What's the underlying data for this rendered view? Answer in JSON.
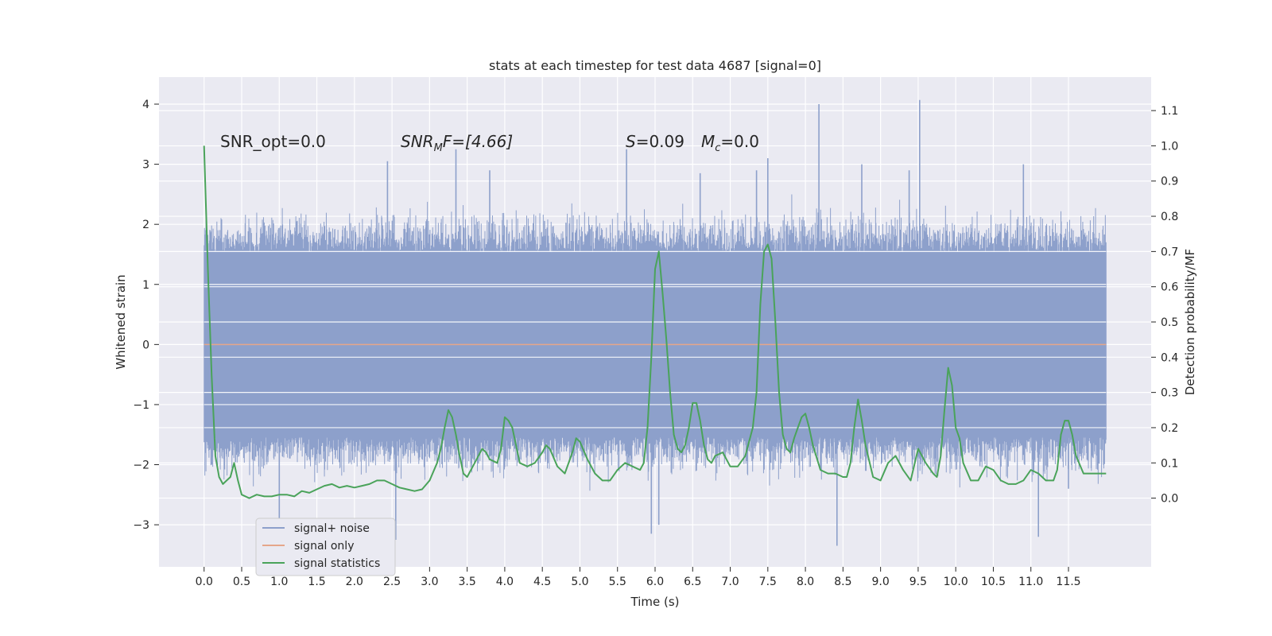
{
  "chart_data": {
    "type": "line",
    "title": "stats at each timestep for test data 4687 [signal=0]",
    "xlabel": "Time (s)",
    "ylabel_left": "Whitened strain",
    "ylabel_right": "Detection probability/MF",
    "xlim": [
      -0.6,
      12.6
    ],
    "ylim_left": [
      -3.7,
      4.45
    ],
    "ylim_right": [
      -0.195,
      1.195
    ],
    "x_ticks": [
      0.0,
      0.5,
      1.0,
      1.5,
      2.0,
      2.5,
      3.0,
      3.5,
      4.0,
      4.5,
      5.0,
      5.5,
      6.0,
      6.5,
      7.0,
      7.5,
      8.0,
      8.5,
      9.0,
      9.5,
      10.0,
      10.5,
      11.0,
      11.5
    ],
    "x_tick_labels": [
      "0.0",
      "0.5",
      "1.0",
      "1.5",
      "2.0",
      "2.5",
      "3.0",
      "3.5",
      "4.0",
      "4.5",
      "5.0",
      "5.5",
      "6.0",
      "6.5",
      "7.0",
      "7.5",
      "8.0",
      "8.5",
      "9.0",
      "9.5",
      "10.0",
      "10.5",
      "11.0",
      "11.5"
    ],
    "y_ticks_left": [
      -3,
      -2,
      -1,
      0,
      1,
      2,
      3,
      4
    ],
    "y_tick_labels_left": [
      "−3",
      "−2",
      "−1",
      "0",
      "1",
      "2",
      "3",
      "4"
    ],
    "y_ticks_right": [
      0.0,
      0.1,
      0.2,
      0.3,
      0.4,
      0.5,
      0.6,
      0.7,
      0.8,
      0.9,
      1.0,
      1.1
    ],
    "y_tick_labels_right": [
      "0.0",
      "0.1",
      "0.2",
      "0.3",
      "0.4",
      "0.5",
      "0.6",
      "0.7",
      "0.8",
      "0.9",
      "1.0",
      "1.1"
    ],
    "grid": true,
    "legend_position": "bottom-left",
    "annotations": {
      "snr_opt": "SNR_opt=0.0",
      "snr_mf_base": "SNR",
      "snr_mf_sub": "M",
      "snr_mf_rest": "F=[4.66]",
      "s_label": "S",
      "s_value": "=0.09",
      "mc_label": "M",
      "mc_sub": "c",
      "mc_value": "=0.0"
    },
    "series": [
      {
        "name": "signal+ noise",
        "axis": "left",
        "color": "#8da0cb",
        "style": "dense noise",
        "t_range": [
          0.0,
          12.0
        ],
        "core_band": [
          -1.55,
          1.55
        ],
        "tall_peaks": [
          {
            "x": 2.44,
            "y": 3.05
          },
          {
            "x": 3.35,
            "y": 3.25
          },
          {
            "x": 3.8,
            "y": 2.9
          },
          {
            "x": 5.62,
            "y": 3.25
          },
          {
            "x": 6.6,
            "y": 2.85
          },
          {
            "x": 7.35,
            "y": 2.9
          },
          {
            "x": 7.5,
            "y": 3.1
          },
          {
            "x": 8.18,
            "y": 4.0
          },
          {
            "x": 8.75,
            "y": 3.0
          },
          {
            "x": 9.38,
            "y": 2.9
          },
          {
            "x": 9.52,
            "y": 4.07
          },
          {
            "x": 10.9,
            "y": 3.0
          }
        ],
        "deep_troughs": [
          {
            "x": 0.1,
            "y": -2.0
          },
          {
            "x": 1.0,
            "y": -3.0
          },
          {
            "x": 2.55,
            "y": -3.25
          },
          {
            "x": 5.95,
            "y": -3.15
          },
          {
            "x": 6.05,
            "y": -3.0
          },
          {
            "x": 8.42,
            "y": -3.35
          },
          {
            "x": 11.1,
            "y": -3.2
          },
          {
            "x": 11.5,
            "y": -2.4
          }
        ]
      },
      {
        "name": "signal only",
        "axis": "left",
        "color": "#e5a68a",
        "x": [
          0.0,
          12.0
        ],
        "y": [
          0.0,
          0.0
        ]
      },
      {
        "name": "signal statistics",
        "axis": "right",
        "color": "#4aa35a",
        "x": [
          0.0,
          0.05,
          0.1,
          0.15,
          0.2,
          0.25,
          0.3,
          0.35,
          0.4,
          0.45,
          0.5,
          0.6,
          0.7,
          0.8,
          0.9,
          1.0,
          1.1,
          1.2,
          1.3,
          1.4,
          1.5,
          1.6,
          1.7,
          1.8,
          1.9,
          2.0,
          2.1,
          2.2,
          2.3,
          2.4,
          2.5,
          2.6,
          2.7,
          2.8,
          2.9,
          3.0,
          3.1,
          3.15,
          3.2,
          3.25,
          3.3,
          3.35,
          3.4,
          3.45,
          3.5,
          3.6,
          3.7,
          3.75,
          3.8,
          3.9,
          3.95,
          4.0,
          4.05,
          4.1,
          4.15,
          4.2,
          4.3,
          4.4,
          4.5,
          4.55,
          4.6,
          4.7,
          4.8,
          4.9,
          4.95,
          5.0,
          5.1,
          5.2,
          5.3,
          5.4,
          5.5,
          5.6,
          5.7,
          5.8,
          5.85,
          5.9,
          5.95,
          6.0,
          6.05,
          6.1,
          6.15,
          6.2,
          6.25,
          6.3,
          6.35,
          6.4,
          6.45,
          6.5,
          6.55,
          6.6,
          6.65,
          6.7,
          6.75,
          6.8,
          6.9,
          7.0,
          7.1,
          7.2,
          7.3,
          7.35,
          7.4,
          7.45,
          7.5,
          7.55,
          7.6,
          7.65,
          7.7,
          7.75,
          7.8,
          7.85,
          7.9,
          7.95,
          8.0,
          8.05,
          8.1,
          8.2,
          8.3,
          8.4,
          8.5,
          8.55,
          8.6,
          8.65,
          8.7,
          8.75,
          8.8,
          8.9,
          9.0,
          9.1,
          9.2,
          9.3,
          9.4,
          9.5,
          9.6,
          9.7,
          9.75,
          9.8,
          9.85,
          9.9,
          9.95,
          10.0,
          10.05,
          10.1,
          10.2,
          10.3,
          10.4,
          10.5,
          10.6,
          10.7,
          10.8,
          10.9,
          11.0,
          11.1,
          11.2,
          11.3,
          11.35,
          11.4,
          11.45,
          11.5,
          11.55,
          11.6,
          11.7,
          11.8,
          11.9,
          12.0
        ],
        "y": [
          1.0,
          0.65,
          0.35,
          0.12,
          0.06,
          0.04,
          0.05,
          0.06,
          0.1,
          0.05,
          0.01,
          0.0,
          0.01,
          0.005,
          0.005,
          0.01,
          0.01,
          0.005,
          0.02,
          0.015,
          0.025,
          0.035,
          0.04,
          0.03,
          0.035,
          0.03,
          0.035,
          0.04,
          0.05,
          0.05,
          0.04,
          0.03,
          0.025,
          0.02,
          0.025,
          0.05,
          0.1,
          0.14,
          0.2,
          0.25,
          0.23,
          0.18,
          0.12,
          0.07,
          0.06,
          0.1,
          0.14,
          0.13,
          0.11,
          0.1,
          0.14,
          0.23,
          0.22,
          0.2,
          0.15,
          0.1,
          0.09,
          0.1,
          0.13,
          0.15,
          0.14,
          0.09,
          0.07,
          0.13,
          0.17,
          0.16,
          0.11,
          0.07,
          0.05,
          0.05,
          0.08,
          0.1,
          0.09,
          0.08,
          0.1,
          0.2,
          0.4,
          0.65,
          0.7,
          0.58,
          0.45,
          0.3,
          0.18,
          0.14,
          0.13,
          0.15,
          0.2,
          0.27,
          0.27,
          0.22,
          0.15,
          0.11,
          0.1,
          0.12,
          0.13,
          0.09,
          0.09,
          0.12,
          0.2,
          0.3,
          0.55,
          0.7,
          0.72,
          0.68,
          0.5,
          0.3,
          0.18,
          0.14,
          0.13,
          0.17,
          0.2,
          0.23,
          0.24,
          0.2,
          0.15,
          0.08,
          0.07,
          0.07,
          0.06,
          0.06,
          0.1,
          0.2,
          0.28,
          0.22,
          0.15,
          0.06,
          0.05,
          0.1,
          0.12,
          0.08,
          0.05,
          0.14,
          0.1,
          0.07,
          0.06,
          0.12,
          0.25,
          0.37,
          0.32,
          0.2,
          0.17,
          0.1,
          0.05,
          0.05,
          0.09,
          0.08,
          0.05,
          0.04,
          0.04,
          0.05,
          0.08,
          0.07,
          0.05,
          0.05,
          0.08,
          0.18,
          0.22,
          0.22,
          0.18,
          0.12,
          0.07,
          0.07,
          0.07,
          0.07
        ]
      }
    ],
    "legend": [
      {
        "label": "signal+ noise",
        "color": "#8da0cb"
      },
      {
        "label": "signal only",
        "color": "#e5a68a"
      },
      {
        "label": "signal statistics",
        "color": "#4aa35a"
      }
    ]
  },
  "colors": {
    "plot_bg": "#eaeaf2",
    "grid": "#ffffff",
    "text": "#262626"
  }
}
